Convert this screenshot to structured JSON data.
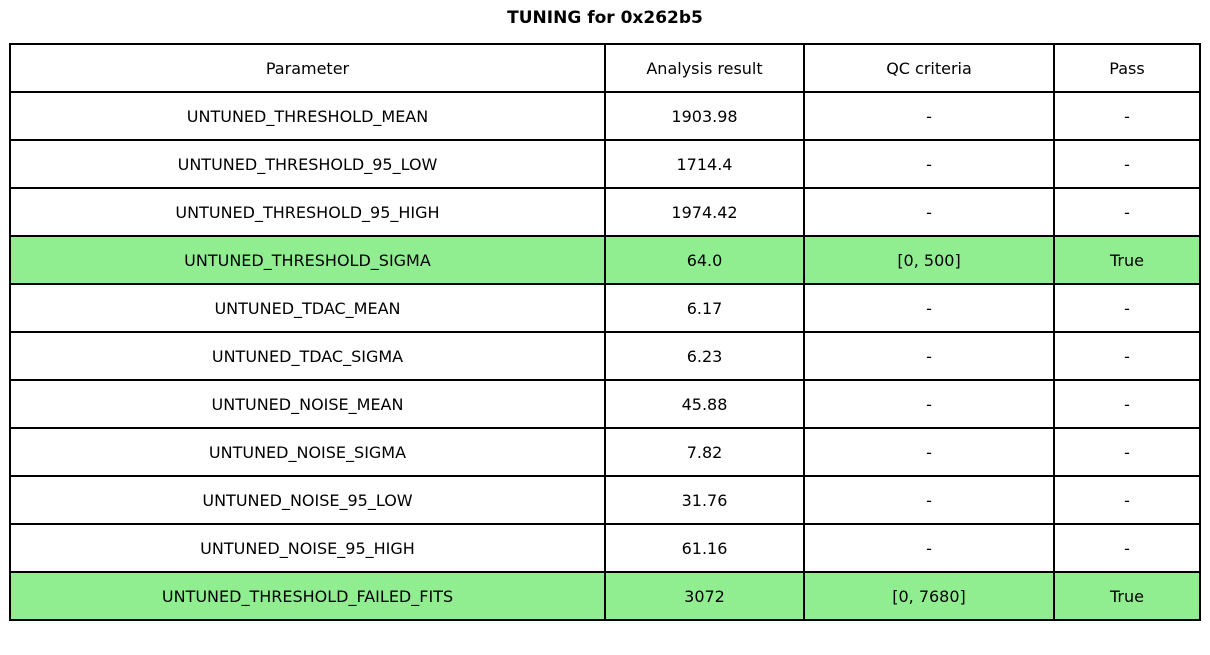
{
  "title": "TUNING for 0x262b5",
  "colors": {
    "pass_green": "#90EE90",
    "border": "#000000",
    "background": "#ffffff",
    "text": "#000000"
  },
  "table": {
    "headers": [
      "Parameter",
      "Analysis result",
      "QC criteria",
      "Pass"
    ],
    "rows": [
      {
        "parameter": "UNTUNED_THRESHOLD_MEAN",
        "result": "1903.98",
        "qc": "-",
        "pass": "-",
        "highlight": false
      },
      {
        "parameter": "UNTUNED_THRESHOLD_95_LOW",
        "result": "1714.4",
        "qc": "-",
        "pass": "-",
        "highlight": false
      },
      {
        "parameter": "UNTUNED_THRESHOLD_95_HIGH",
        "result": "1974.42",
        "qc": "-",
        "pass": "-",
        "highlight": false
      },
      {
        "parameter": "UNTUNED_THRESHOLD_SIGMA",
        "result": "64.0",
        "qc": "[0, 500]",
        "pass": "True",
        "highlight": true
      },
      {
        "parameter": "UNTUNED_TDAC_MEAN",
        "result": "6.17",
        "qc": "-",
        "pass": "-",
        "highlight": false
      },
      {
        "parameter": "UNTUNED_TDAC_SIGMA",
        "result": "6.23",
        "qc": "-",
        "pass": "-",
        "highlight": false
      },
      {
        "parameter": "UNTUNED_NOISE_MEAN",
        "result": "45.88",
        "qc": "-",
        "pass": "-",
        "highlight": false
      },
      {
        "parameter": "UNTUNED_NOISE_SIGMA",
        "result": "7.82",
        "qc": "-",
        "pass": "-",
        "highlight": false
      },
      {
        "parameter": "UNTUNED_NOISE_95_LOW",
        "result": "31.76",
        "qc": "-",
        "pass": "-",
        "highlight": false
      },
      {
        "parameter": "UNTUNED_NOISE_95_HIGH",
        "result": "61.16",
        "qc": "-",
        "pass": "-",
        "highlight": false
      },
      {
        "parameter": "UNTUNED_THRESHOLD_FAILED_FITS",
        "result": "3072",
        "qc": "[0, 7680]",
        "pass": "True",
        "highlight": true
      }
    ]
  },
  "chart_data": {
    "type": "table",
    "title": "TUNING for 0x262b5",
    "columns": [
      "Parameter",
      "Analysis result",
      "QC criteria",
      "Pass"
    ],
    "rows": [
      [
        "UNTUNED_THRESHOLD_MEAN",
        "1903.98",
        "-",
        "-"
      ],
      [
        "UNTUNED_THRESHOLD_95_LOW",
        "1714.4",
        "-",
        "-"
      ],
      [
        "UNTUNED_THRESHOLD_95_HIGH",
        "1974.42",
        "-",
        "-"
      ],
      [
        "UNTUNED_THRESHOLD_SIGMA",
        "64.0",
        "[0, 500]",
        "True"
      ],
      [
        "UNTUNED_TDAC_MEAN",
        "6.17",
        "-",
        "-"
      ],
      [
        "UNTUNED_TDAC_SIGMA",
        "6.23",
        "-",
        "-"
      ],
      [
        "UNTUNED_NOISE_MEAN",
        "45.88",
        "-",
        "-"
      ],
      [
        "UNTUNED_NOISE_SIGMA",
        "7.82",
        "-",
        "-"
      ],
      [
        "UNTUNED_NOISE_95_LOW",
        "31.76",
        "-",
        "-"
      ],
      [
        "UNTUNED_NOISE_95_HIGH",
        "61.16",
        "-",
        "-"
      ],
      [
        "UNTUNED_THRESHOLD_FAILED_FITS",
        "3072",
        "[0, 7680]",
        "True"
      ]
    ],
    "highlighted_rows": [
      3,
      10
    ],
    "highlight_color": "#90EE90",
    "layout_hints": {
      "title_position": "top-center",
      "grid": "full-borders",
      "text_align": "center"
    }
  }
}
